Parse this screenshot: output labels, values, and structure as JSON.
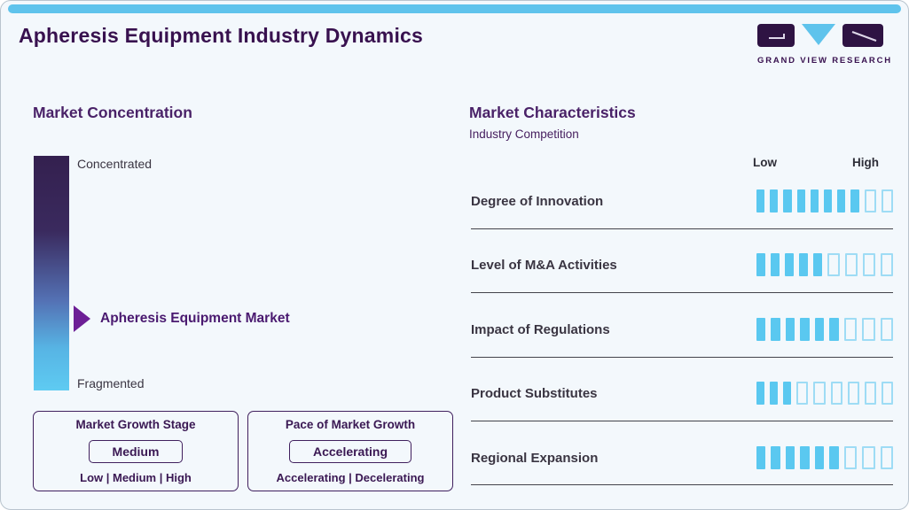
{
  "page": {
    "title": "Apheresis Equipment Industry Dynamics",
    "accent_color": "#5fc3ec",
    "background_color": "#f3f8fc"
  },
  "logo": {
    "brand": "GRAND VIEW RESEARCH",
    "mark_purple": "#2e1343",
    "mark_blue": "#5fc3ec"
  },
  "market_concentration": {
    "heading": "Market Concentration",
    "scale_top": "Concentrated",
    "scale_bottom": "Fragmented",
    "marker_label": "Apheresis Equipment Market",
    "marker_position_pct_from_top": 70,
    "gradient_top": "#34204f",
    "gradient_bottom": "#5ecbf2",
    "arrow_color": "#6d1f96"
  },
  "growth_boxes": [
    {
      "title": "Market Growth Stage",
      "value": "Medium",
      "options": "Low | Medium | High"
    },
    {
      "title": "Pace of Market Growth",
      "value": "Accelerating",
      "options": "Accelerating | Decelerating"
    }
  ],
  "market_characteristics": {
    "heading": "Market Characteristics",
    "subheading": "Industry Competition",
    "scale_left": "Low",
    "scale_right": "High",
    "filled_color": "#5ac8f0",
    "empty_border_color": "#9edcf5",
    "rows": [
      {
        "label": "Degree of Innovation",
        "filled": 8,
        "total": 10
      },
      {
        "label": "Level of M&A Activities",
        "filled": 5,
        "total": 9
      },
      {
        "label": "Impact of Regulations",
        "filled": 6,
        "total": 9
      },
      {
        "label": "Product Substitutes",
        "filled": 3,
        "total": 9
      },
      {
        "label": "Regional Expansion",
        "filled": 6,
        "total": 9
      }
    ]
  },
  "chart_data": {
    "type": "bar",
    "title": "Market Characteristics — Industry Competition",
    "categories": [
      "Degree of Innovation",
      "Level of M&A Activities",
      "Impact of Regulations",
      "Product Substitutes",
      "Regional Expansion"
    ],
    "values": [
      8,
      5,
      6,
      3,
      6
    ],
    "totals": [
      10,
      9,
      9,
      9,
      9
    ],
    "xlabel": "",
    "ylabel": "",
    "scale_labels": [
      "Low",
      "High"
    ],
    "legend": "none",
    "grid": "off"
  }
}
